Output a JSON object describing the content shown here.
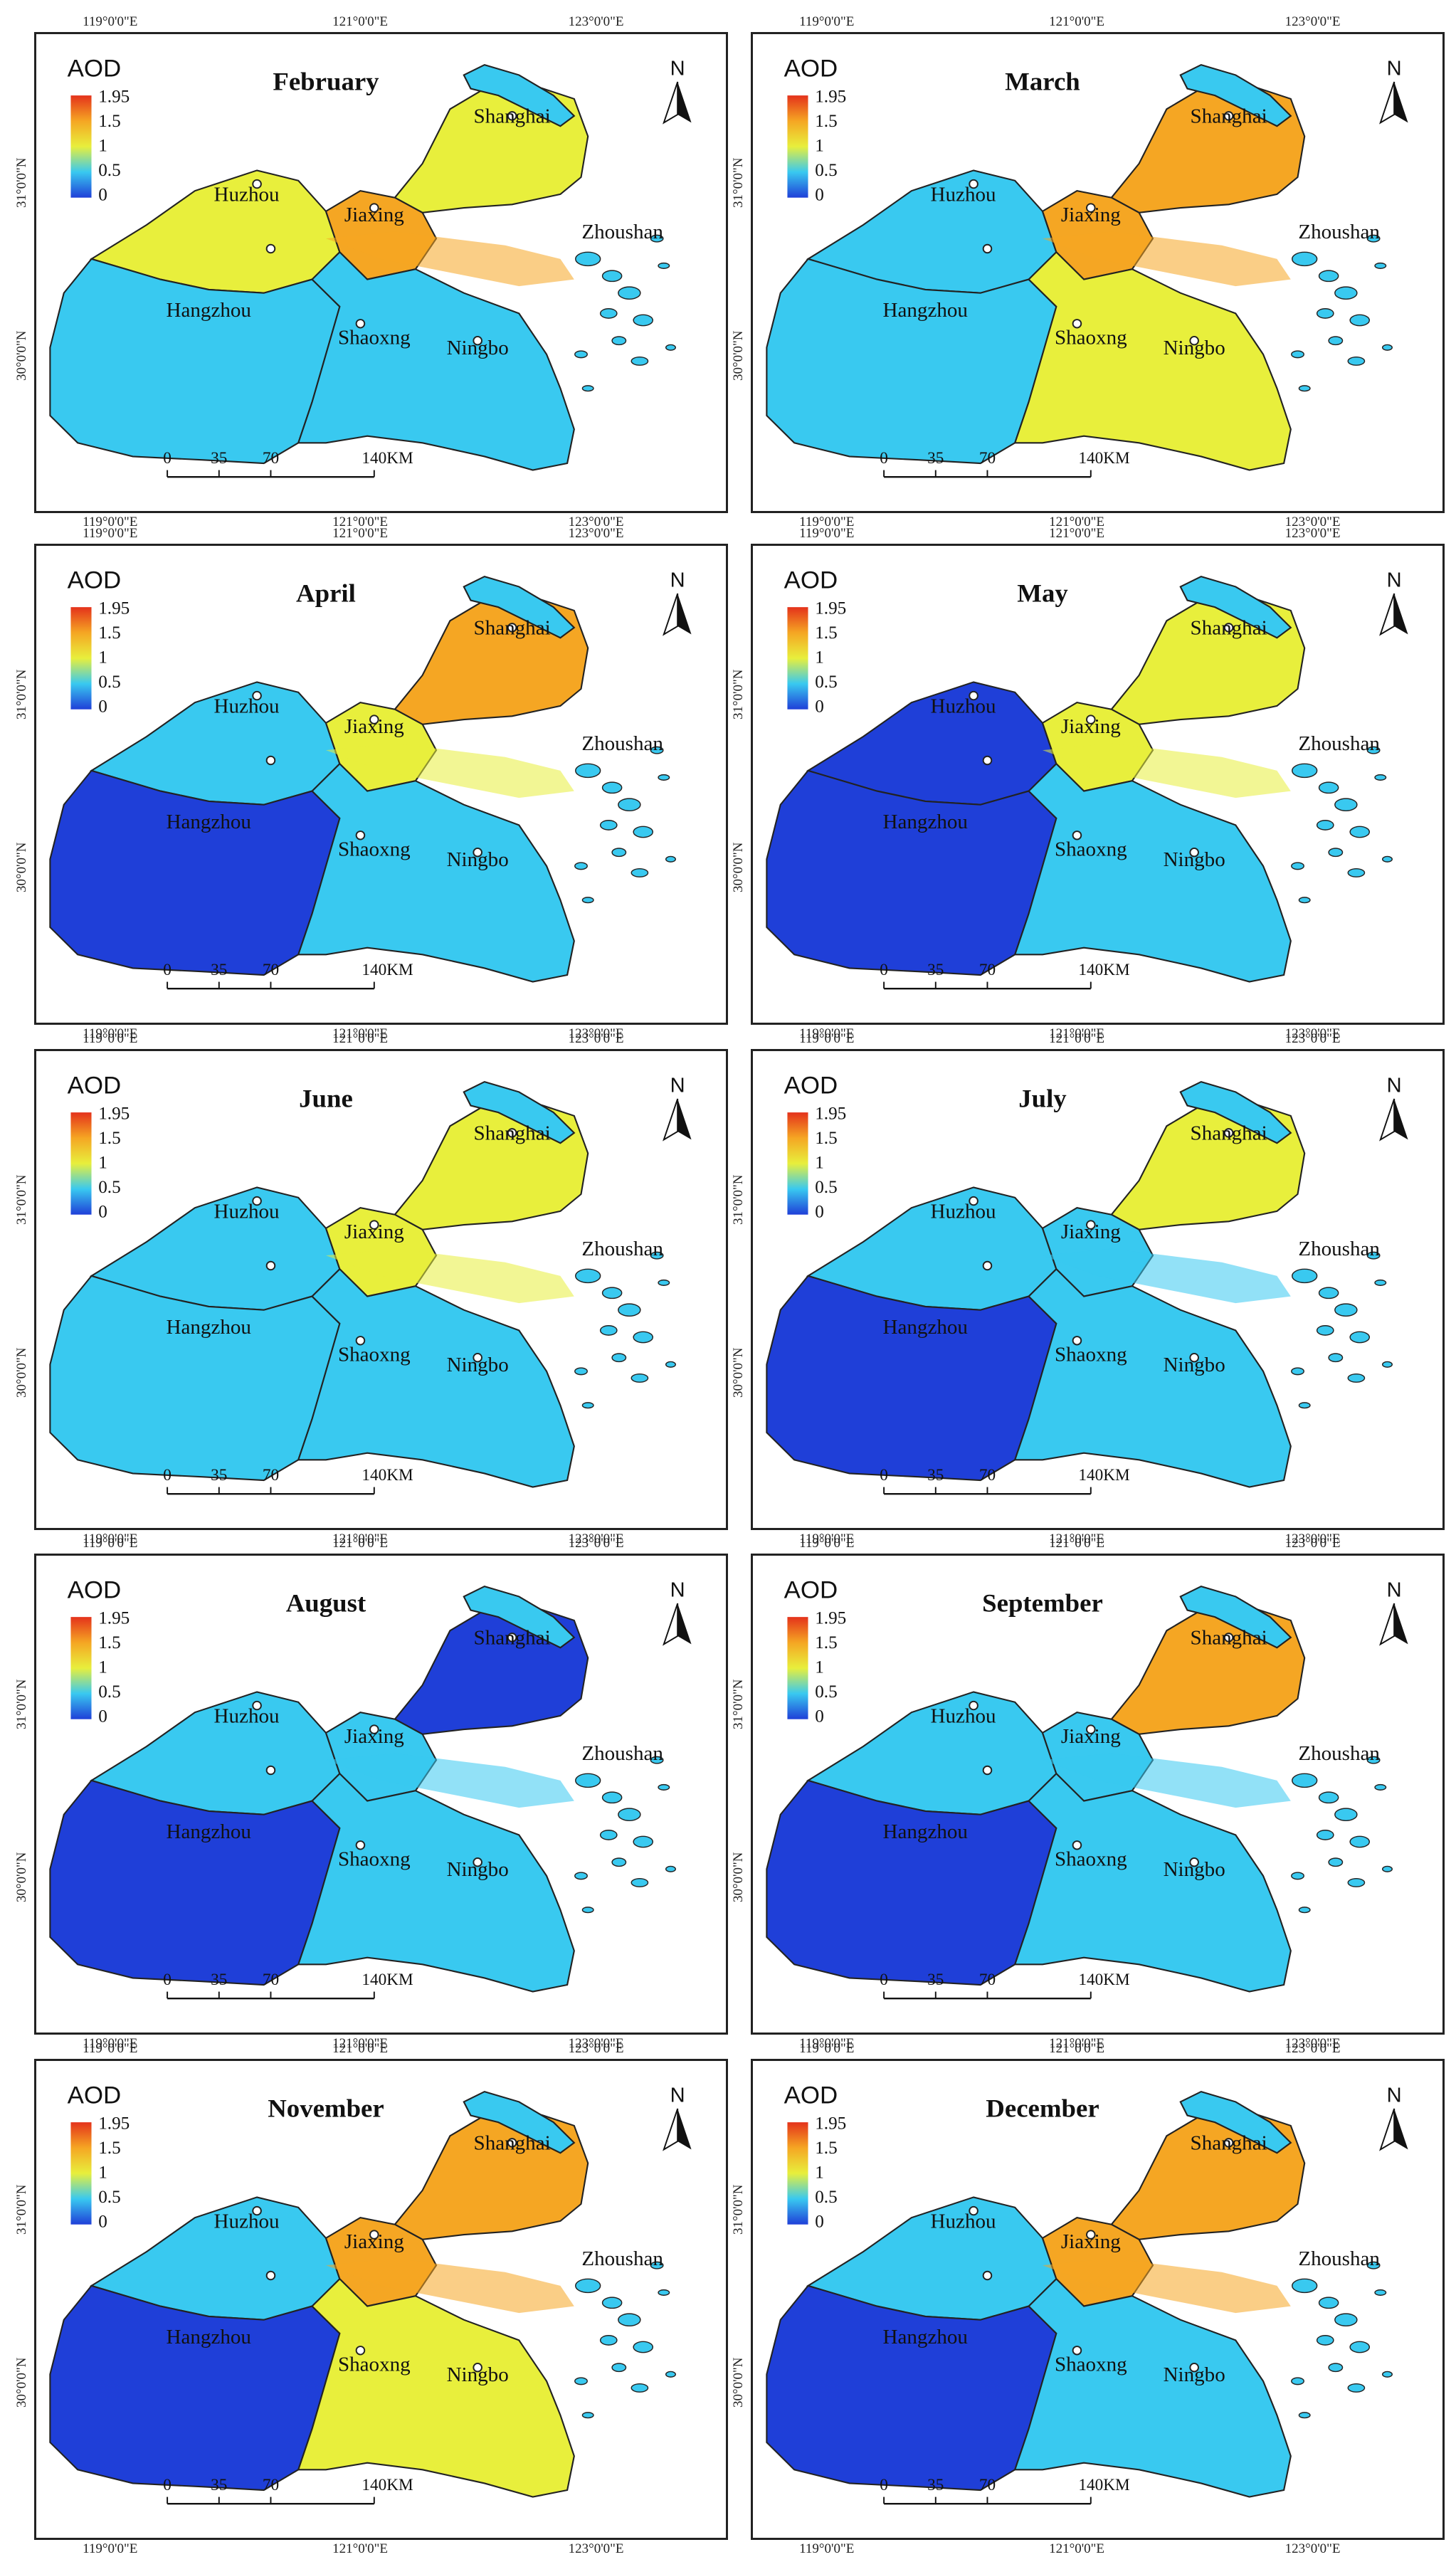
{
  "legend": {
    "title": "AOD",
    "ticks": [
      "1.95",
      "1.5",
      "1",
      "0.5",
      "0"
    ]
  },
  "north": "N",
  "scale_bar": {
    "ticks": [
      "0",
      "35",
      "70",
      "140"
    ],
    "unit": "KM"
  },
  "lon_labels": [
    "119°0'0\"E",
    "121°0'0\"E",
    "123°0'0\"E"
  ],
  "lat_labels": [
    "31°0'0\"N",
    "30°0'0\"N"
  ],
  "cities": [
    "Shanghai",
    "Huzhou",
    "Jiaxing",
    "Hangzhou",
    "Shaoxng",
    "Ningbo",
    "Zhoushan"
  ],
  "colors": {
    "low": "#1f3fd8",
    "mid": "#39c9f0",
    "moderate": "#e8ef3c",
    "high": "#f5a623",
    "max": "#e4321b"
  },
  "panels": [
    {
      "month": "February",
      "levels": {
        "north": "high",
        "hz": "moderate",
        "sw": "mid",
        "south": "mid",
        "ne": "moderate"
      }
    },
    {
      "month": "March",
      "levels": {
        "north": "high",
        "hz": "mid",
        "sw": "mid",
        "south": "moderate",
        "ne": "high"
      }
    },
    {
      "month": "April",
      "levels": {
        "north": "moderate",
        "hz": "mid",
        "sw": "low",
        "south": "mid",
        "ne": "high"
      }
    },
    {
      "month": "May",
      "levels": {
        "north": "moderate",
        "hz": "low",
        "sw": "low",
        "south": "mid",
        "ne": "moderate"
      }
    },
    {
      "month": "June",
      "levels": {
        "north": "moderate",
        "hz": "mid",
        "sw": "mid",
        "south": "mid",
        "ne": "moderate"
      }
    },
    {
      "month": "July",
      "levels": {
        "north": "mid",
        "hz": "mid",
        "sw": "low",
        "south": "mid",
        "ne": "moderate"
      }
    },
    {
      "month": "August",
      "levels": {
        "north": "mid",
        "hz": "mid",
        "sw": "low",
        "south": "mid",
        "ne": "low"
      }
    },
    {
      "month": "September",
      "levels": {
        "north": "mid",
        "hz": "mid",
        "sw": "low",
        "south": "mid",
        "ne": "high"
      }
    },
    {
      "month": "November",
      "levels": {
        "north": "high",
        "hz": "mid",
        "sw": "low",
        "south": "moderate",
        "ne": "high"
      }
    },
    {
      "month": "December",
      "levels": {
        "north": "high",
        "hz": "mid",
        "sw": "low",
        "south": "mid",
        "ne": "high"
      }
    }
  ]
}
